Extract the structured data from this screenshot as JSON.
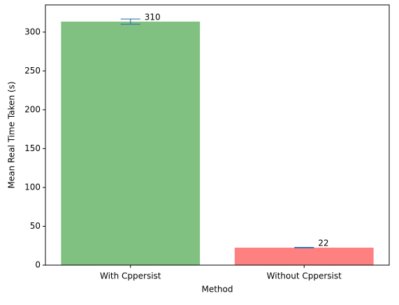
{
  "chart_data": {
    "type": "bar",
    "xlabel": "Method",
    "ylabel": "Mean Real Time Taken (s)",
    "categories": [
      "With Cppersist",
      "Without Cppersist"
    ],
    "values": [
      313.5,
      22.5
    ],
    "errors": [
      3.3,
      0.4
    ],
    "colors": [
      "#80c080",
      "#ff8080"
    ],
    "error_color": "#3b75af",
    "annotations": [
      "310",
      "22"
    ],
    "ylim": [
      0,
      335
    ],
    "yticks": [
      0,
      50,
      100,
      150,
      200,
      250,
      300
    ]
  }
}
